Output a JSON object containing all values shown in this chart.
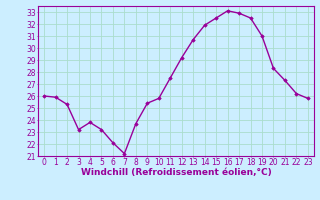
{
  "x": [
    0,
    1,
    2,
    3,
    4,
    5,
    6,
    7,
    8,
    9,
    10,
    11,
    12,
    13,
    14,
    15,
    16,
    17,
    18,
    19,
    20,
    21,
    22,
    23
  ],
  "y": [
    26.0,
    25.9,
    25.3,
    23.2,
    23.8,
    23.2,
    22.1,
    21.2,
    23.7,
    25.4,
    25.8,
    27.5,
    29.2,
    30.7,
    31.9,
    32.5,
    33.1,
    32.9,
    32.5,
    31.0,
    28.3,
    27.3,
    26.2,
    25.8
  ],
  "xlim": [
    -0.5,
    23.5
  ],
  "ylim": [
    21,
    33.5
  ],
  "yticks": [
    21,
    22,
    23,
    24,
    25,
    26,
    27,
    28,
    29,
    30,
    31,
    32,
    33
  ],
  "xticks": [
    0,
    1,
    2,
    3,
    4,
    5,
    6,
    7,
    8,
    9,
    10,
    11,
    12,
    13,
    14,
    15,
    16,
    17,
    18,
    19,
    20,
    21,
    22,
    23
  ],
  "line_color": "#990099",
  "marker": "D",
  "marker_size": 1.8,
  "bg_color": "#cceeff",
  "grid_color": "#aaddcc",
  "xlabel": "Windchill (Refroidissement éolien,°C)",
  "xlabel_color": "#990099",
  "tick_color": "#990099",
  "axis_label_fontsize": 6.5,
  "tick_fontsize": 5.5,
  "line_width": 1.0,
  "spine_color": "#990099"
}
